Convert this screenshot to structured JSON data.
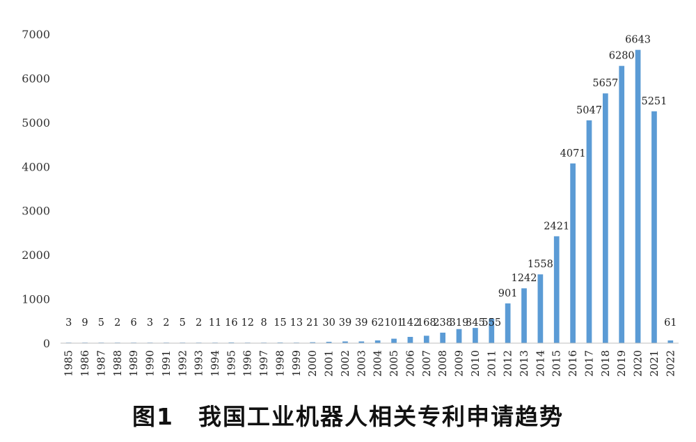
{
  "chart_data": {
    "type": "bar",
    "categories": [
      "1985",
      "1986",
      "1987",
      "1988",
      "1989",
      "1990",
      "1991",
      "1992",
      "1993",
      "1994",
      "1995",
      "1996",
      "1997",
      "1998",
      "1999",
      "2000",
      "2001",
      "2002",
      "2003",
      "2004",
      "2005",
      "2006",
      "2007",
      "2008",
      "2009",
      "2010",
      "2011",
      "2012",
      "2013",
      "2014",
      "2015",
      "2016",
      "2017",
      "2018",
      "2019",
      "2020",
      "2021",
      "2022"
    ],
    "values": [
      3,
      9,
      5,
      2,
      6,
      3,
      2,
      5,
      2,
      11,
      16,
      12,
      8,
      15,
      13,
      21,
      30,
      39,
      39,
      62,
      101,
      142,
      168,
      238,
      319,
      345,
      555,
      901,
      1242,
      1558,
      2421,
      4071,
      5047,
      5657,
      6280,
      6643,
      5251,
      61
    ],
    "ylim": [
      0,
      7000
    ],
    "yticks": [
      0,
      1000,
      2000,
      3000,
      4000,
      5000,
      6000,
      7000
    ],
    "bar_color": "#5b9bd5",
    "grid": false
  },
  "caption": "图1　我国工业机器人相关专利申请趋势"
}
